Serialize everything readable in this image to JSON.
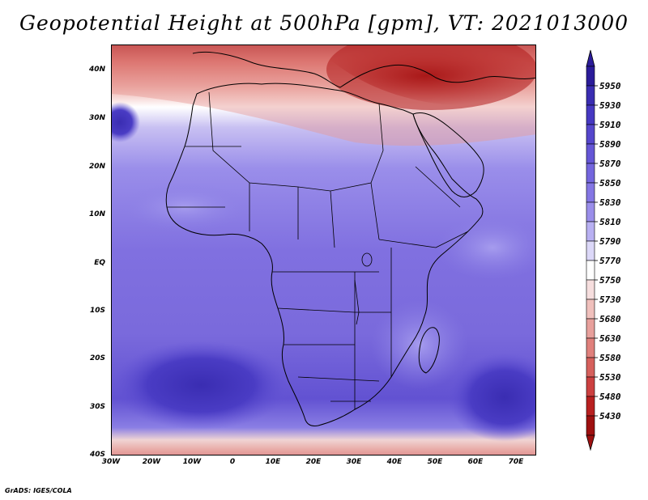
{
  "title": "Geopotential Height at 500hPa [gpm], VT: 2021013000",
  "footer": "GrADS: IGES/COLA",
  "lat_labels": [
    "40N",
    "30N",
    "20N",
    "10N",
    "EQ",
    "10S",
    "20S",
    "30S",
    "40S"
  ],
  "lon_labels": [
    "30W",
    "20W",
    "10W",
    "0",
    "10E",
    "20E",
    "30E",
    "40E",
    "50E",
    "60E",
    "70E"
  ],
  "colorbar": {
    "levels": [
      "5950",
      "5930",
      "5910",
      "5890",
      "5870",
      "5850",
      "5830",
      "5810",
      "5790",
      "5770",
      "5750",
      "5730",
      "5680",
      "5630",
      "5580",
      "5530",
      "5480",
      "5430"
    ],
    "colors": [
      "#2b1c9a",
      "#3a2db2",
      "#4638c2",
      "#5546cc",
      "#6556d6",
      "#7466de",
      "#8476e4",
      "#9a8eea",
      "#b8b0f2",
      "#dcd8f8",
      "#ffffff",
      "#f6dede",
      "#f0c0bc",
      "#e8a09c",
      "#e0807c",
      "#d6605c",
      "#cc4040",
      "#b82020",
      "#9e1010"
    ]
  }
}
